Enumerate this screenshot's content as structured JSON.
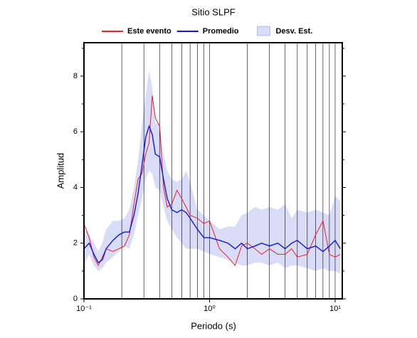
{
  "chart_data": {
    "type": "line",
    "title": "Sitio SLPF",
    "xlabel": "Periodo (s)",
    "ylabel": "Amplitud",
    "xscale": "log",
    "grid": true,
    "xlim": [
      0.1,
      11.4
    ],
    "ylim": [
      0,
      9.2
    ],
    "xticks": [
      {
        "value": 0.1,
        "label": "10⁻¹"
      },
      {
        "value": 1,
        "label": "10⁰"
      },
      {
        "value": 10,
        "label": "10¹"
      }
    ],
    "xminorticks": [
      0.2,
      0.3,
      0.4,
      0.5,
      0.6,
      0.7,
      0.8,
      0.9,
      2,
      3,
      4,
      5,
      6,
      7,
      8,
      9
    ],
    "yticks": [
      0,
      2,
      4,
      6,
      8
    ],
    "yminorticks": [
      1,
      3,
      5,
      7,
      9
    ],
    "x": [
      0.1,
      0.11,
      0.12,
      0.13,
      0.14,
      0.15,
      0.17,
      0.19,
      0.21,
      0.23,
      0.25,
      0.27,
      0.29,
      0.31,
      0.33,
      0.35,
      0.37,
      0.4,
      0.43,
      0.46,
      0.5,
      0.55,
      0.6,
      0.65,
      0.7,
      0.8,
      0.9,
      1.0,
      1.2,
      1.4,
      1.6,
      1.8,
      2,
      2.3,
      2.6,
      3,
      3.5,
      4,
      4.5,
      5,
      6,
      7,
      8,
      9,
      10,
      11
    ],
    "series": [
      {
        "name": "Este evento",
        "color": "#e8202a",
        "values": [
          2.7,
          2.2,
          1.5,
          1.2,
          1.5,
          1.8,
          1.7,
          1.8,
          1.9,
          2.3,
          3.4,
          4.3,
          4.5,
          5.2,
          5.6,
          7.3,
          6.5,
          6.2,
          4.0,
          3.3,
          3.4,
          3.9,
          3.6,
          3.3,
          3.0,
          2.9,
          2.7,
          2.8,
          1.8,
          1.5,
          1.2,
          1.9,
          2.0,
          1.8,
          1.6,
          1.8,
          1.6,
          1.6,
          1.8,
          1.5,
          1.6,
          2.3,
          2.8,
          1.6,
          1.5,
          1.6
        ]
      },
      {
        "name": "Promedio",
        "color": "#1515d8",
        "values": [
          1.8,
          2.0,
          1.6,
          1.3,
          1.4,
          1.8,
          2.1,
          2.3,
          2.4,
          2.4,
          3.0,
          3.8,
          4.8,
          5.8,
          6.2,
          5.9,
          5.2,
          5.1,
          4.3,
          3.6,
          3.2,
          3.1,
          3.2,
          3.1,
          2.9,
          2.5,
          2.2,
          2.2,
          2.1,
          2.0,
          1.8,
          2.0,
          1.8,
          1.9,
          2.0,
          1.9,
          2.0,
          1.8,
          2.0,
          2.1,
          1.8,
          1.9,
          1.7,
          1.9,
          2.1,
          1.8
        ]
      },
      {
        "name": "Desv. Est.",
        "color": "#d9dcf6",
        "band": true,
        "values": [
          2.5,
          2.3,
          2.0,
          1.7,
          2.0,
          2.5,
          2.8,
          2.8,
          2.9,
          3.2,
          4.0,
          5.0,
          6.3,
          7.3,
          8.2,
          7.6,
          6.3,
          6.3,
          5.2,
          4.6,
          4.3,
          4.2,
          4.3,
          4.6,
          4.2,
          3.2,
          3.0,
          2.8,
          2.5,
          2.6,
          2.6,
          3.0,
          3.1,
          3.3,
          3.2,
          3.3,
          3.2,
          3.4,
          2.9,
          3.2,
          3.1,
          3.2,
          3.1,
          3.0,
          3.7,
          3.5
        ],
        "lower": [
          1.2,
          1.6,
          1.2,
          1.0,
          1.1,
          1.3,
          1.5,
          1.7,
          1.9,
          1.8,
          2.3,
          3.0,
          3.6,
          4.3,
          4.6,
          4.5,
          4.0,
          3.9,
          3.3,
          2.8,
          2.5,
          2.2,
          2.0,
          1.8,
          1.8,
          1.8,
          1.7,
          1.6,
          1.5,
          1.4,
          1.3,
          1.2,
          1.2,
          1.3,
          1.3,
          1.2,
          1.3,
          1.1,
          1.2,
          1.2,
          1.1,
          1.0,
          1.1,
          1.0,
          1.0,
          0.9
        ]
      }
    ]
  }
}
